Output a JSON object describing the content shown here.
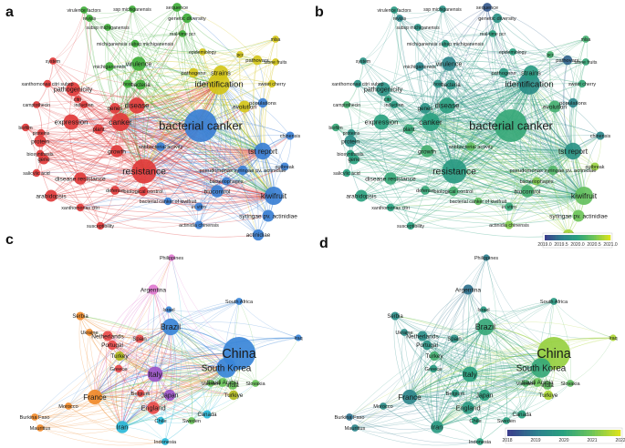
{
  "panels": [
    {
      "letter": "a",
      "colorbar": null
    },
    {
      "letter": "b",
      "colorbar": {
        "ticks": [
          "2019.0",
          "2019.5",
          "2020.0",
          "2020.5",
          "2021.0"
        ]
      }
    },
    {
      "letter": "c",
      "colorbar": null
    },
    {
      "letter": "d",
      "colorbar": {
        "ticks": [
          "2018",
          "2019",
          "2020",
          "2021",
          "2022"
        ]
      }
    }
  ],
  "keyword_nodes": [
    {
      "label": "bacterial canker",
      "cluster": 3,
      "weight": 1.0,
      "year": 0.55
    },
    {
      "label": "resistance",
      "cluster": 0,
      "weight": 0.72,
      "year": 0.45
    },
    {
      "label": "identification",
      "cluster": 2,
      "weight": 0.62,
      "year": 0.35
    },
    {
      "label": "canker",
      "cluster": 0,
      "weight": 0.5,
      "year": 0.5
    },
    {
      "label": "kiwifruit",
      "cluster": 3,
      "weight": 0.5,
      "year": 0.72
    },
    {
      "label": "tst report",
      "cluster": 3,
      "weight": 0.45,
      "year": 0.4
    },
    {
      "label": "expression",
      "cluster": 0,
      "weight": 0.4,
      "year": 0.5
    },
    {
      "label": "disease",
      "cluster": 0,
      "weight": 0.42,
      "year": 0.48
    },
    {
      "label": "strains",
      "cluster": 2,
      "weight": 0.38,
      "year": 0.45
    },
    {
      "label": "virulence",
      "cluster": 1,
      "weight": 0.36,
      "year": 0.3
    },
    {
      "label": "pathogenicity",
      "cluster": 0,
      "weight": 0.36,
      "year": 0.4
    },
    {
      "label": "biocontrol",
      "cluster": 3,
      "weight": 0.3,
      "year": 0.6
    },
    {
      "label": "growth",
      "cluster": 0,
      "weight": 0.3,
      "year": 0.6
    },
    {
      "label": "disease resistance",
      "cluster": 0,
      "weight": 0.3,
      "year": 0.55
    },
    {
      "label": "protein",
      "cluster": 0,
      "weight": 0.28,
      "year": 0.35
    },
    {
      "label": "arabidopsis",
      "cluster": 0,
      "weight": 0.28,
      "year": 0.5
    },
    {
      "label": "evolution",
      "cluster": 2,
      "weight": 0.28,
      "year": 0.6
    },
    {
      "label": "syringae pv. actinidiae",
      "cluster": 3,
      "weight": 0.28,
      "year": 0.75
    },
    {
      "label": "actinidiae",
      "cluster": 3,
      "weight": 0.26,
      "year": 0.88
    },
    {
      "label": "genes",
      "cluster": 0,
      "weight": 0.24,
      "year": 0.4
    },
    {
      "label": "plant",
      "cluster": 0,
      "weight": 0.22,
      "year": 0.55
    },
    {
      "label": "gene",
      "cluster": 0,
      "weight": 0.22,
      "year": 0.5
    },
    {
      "label": "bacteria",
      "cluster": 1,
      "weight": 0.22,
      "year": 0.4
    },
    {
      "label": "genetic diversity",
      "cluster": 1,
      "weight": 0.2,
      "year": 0.4
    },
    {
      "label": "populations",
      "cluster": 3,
      "weight": 0.2,
      "year": 0.3
    },
    {
      "label": "pathovars",
      "cluster": 2,
      "weight": 0.2,
      "year": 0.15
    },
    {
      "label": "sequence",
      "cluster": 1,
      "weight": 0.18,
      "year": 0.1
    },
    {
      "label": "michiganensis",
      "cluster": 1,
      "weight": 0.18,
      "year": 0.3
    },
    {
      "label": "pathogens",
      "cluster": 2,
      "weight": 0.2,
      "year": 0.45
    },
    {
      "label": "host",
      "cluster": 1,
      "weight": 0.16,
      "year": 0.4
    },
    {
      "label": "antibacterial activity",
      "cluster": 3,
      "weight": 0.18,
      "year": 0.7
    },
    {
      "label": "pseudomonas syringae pv. actinidiae",
      "cluster": 3,
      "weight": 0.2,
      "year": 0.65
    },
    {
      "label": "biological control",
      "cluster": 0,
      "weight": 0.2,
      "year": 0.6
    },
    {
      "label": "defense",
      "cluster": 0,
      "weight": 0.18,
      "year": 0.55
    },
    {
      "label": "outbreak",
      "cluster": 3,
      "weight": 0.16,
      "year": 0.85
    },
    {
      "label": "chinensis",
      "cluster": 3,
      "weight": 0.16,
      "year": 0.3
    },
    {
      "label": "bacteriophages",
      "cluster": 3,
      "weight": 0.16,
      "year": 0.8
    },
    {
      "label": "in vitro",
      "cluster": 3,
      "weight": 0.16,
      "year": 0.55
    },
    {
      "label": "actinidia chinensis",
      "cluster": 3,
      "weight": 0.16,
      "year": 0.8
    },
    {
      "label": "bacterial canker of kiwifruit",
      "cluster": 3,
      "weight": 0.14,
      "year": 0.7
    },
    {
      "label": "xanthomonas citri",
      "cluster": 0,
      "weight": 0.14,
      "year": 0.5
    },
    {
      "label": "susceptibility",
      "cluster": 0,
      "weight": 0.14,
      "year": 0.5
    },
    {
      "label": "salicylic acid",
      "cluster": 0,
      "weight": 0.14,
      "year": 0.5
    },
    {
      "label": "biofilm",
      "cluster": 0,
      "weight": 0.14,
      "year": 0.55
    },
    {
      "label": "proteins",
      "cluster": 0,
      "weight": 0.14,
      "year": 0.4
    },
    {
      "label": "biosynthesis",
      "cluster": 0,
      "weight": 0.14,
      "year": 0.5
    },
    {
      "label": "induction",
      "cluster": 0,
      "weight": 0.14,
      "year": 0.45
    },
    {
      "label": "camptothecin",
      "cluster": 0,
      "weight": 0.12,
      "year": 0.6
    },
    {
      "label": "xanthomonas citri subsp",
      "cluster": 0,
      "weight": 0.14,
      "year": 0.4
    },
    {
      "label": "system",
      "cluster": 0,
      "weight": 0.12,
      "year": 0.4
    },
    {
      "label": "citri",
      "cluster": 0,
      "weight": 0.12,
      "year": 0.5
    },
    {
      "label": "virulence factors",
      "cluster": 1,
      "weight": 0.12,
      "year": 0.45
    },
    {
      "label": "revisis",
      "cluster": 1,
      "weight": 0.12,
      "year": 0.3
    },
    {
      "label": "ssp michiganensis",
      "cluster": 1,
      "weight": 0.12,
      "year": 0.4
    },
    {
      "label": "subsp michiganensis",
      "cluster": 1,
      "weight": 0.12,
      "year": 0.4
    },
    {
      "label": "real-time pcr",
      "cluster": 1,
      "weight": 0.12,
      "year": 0.5
    },
    {
      "label": "michiganensis subsp michiganensis",
      "cluster": 1,
      "weight": 0.14,
      "year": 0.45
    },
    {
      "label": "epidemiology",
      "cluster": 2,
      "weight": 0.12,
      "year": 0.5
    },
    {
      "label": "stone fruits",
      "cluster": 2,
      "weight": 0.12,
      "year": 0.55
    },
    {
      "label": "mlsa",
      "cluster": 2,
      "weight": 0.12,
      "year": 0.6
    },
    {
      "label": "sweet cherry",
      "cluster": 2,
      "weight": 0.14,
      "year": 0.55
    },
    {
      "label": "pcr",
      "cluster": 2,
      "weight": 0.12,
      "year": 0.6
    }
  ],
  "country_nodes": [
    {
      "label": "China",
      "cluster": 3,
      "weight": 1.0,
      "year": 0.85
    },
    {
      "label": "South Korea",
      "cluster": 3,
      "weight": 0.55,
      "year": 0.55
    },
    {
      "label": "Brazil",
      "cluster": 3,
      "weight": 0.45,
      "year": 0.55
    },
    {
      "label": "Italy",
      "cluster": 4,
      "weight": 0.4,
      "year": 0.5
    },
    {
      "label": "France",
      "cluster": 1,
      "weight": 0.38,
      "year": 0.3
    },
    {
      "label": "Iran",
      "cluster": 5,
      "weight": 0.3,
      "year": 0.45
    },
    {
      "label": "England",
      "cluster": 0,
      "weight": 0.3,
      "year": 0.45
    },
    {
      "label": "Japan",
      "cluster": 4,
      "weight": 0.26,
      "year": 0.5
    },
    {
      "label": "Argentina",
      "cluster": 6,
      "weight": 0.22,
      "year": 0.2
    },
    {
      "label": "Netherlands",
      "cluster": 0,
      "weight": 0.22,
      "year": 0.35
    },
    {
      "label": "Portugal",
      "cluster": 0,
      "weight": 0.2,
      "year": 0.4
    },
    {
      "label": "Turkey",
      "cluster": 7,
      "weight": 0.2,
      "year": 0.6
    },
    {
      "label": "Turkiye",
      "cluster": 7,
      "weight": 0.2,
      "year": 0.9
    },
    {
      "label": "Saudi Arabia",
      "cluster": 2,
      "weight": 0.18,
      "year": 0.75
    },
    {
      "label": "India",
      "cluster": 2,
      "weight": 0.18,
      "year": 0.7
    },
    {
      "label": "Serbia",
      "cluster": 1,
      "weight": 0.16,
      "year": 0.35
    },
    {
      "label": "Spain",
      "cluster": 0,
      "weight": 0.16,
      "year": 0.4
    },
    {
      "label": "Ukraine",
      "cluster": 1,
      "weight": 0.12,
      "year": 0.35
    },
    {
      "label": "Greece",
      "cluster": 0,
      "weight": 0.14,
      "year": 0.45
    },
    {
      "label": "Belgium",
      "cluster": 0,
      "weight": 0.14,
      "year": 0.45
    },
    {
      "label": "Canada",
      "cluster": 5,
      "weight": 0.16,
      "year": 0.5
    },
    {
      "label": "Chile",
      "cluster": 5,
      "weight": 0.14,
      "year": 0.5
    },
    {
      "label": "Sweden",
      "cluster": 2,
      "weight": 0.12,
      "year": 0.5
    },
    {
      "label": "Vietnam",
      "cluster": 2,
      "weight": 0.12,
      "year": 0.65
    },
    {
      "label": "Slovakia",
      "cluster": 2,
      "weight": 0.12,
      "year": 0.7
    },
    {
      "label": "Israel",
      "cluster": 3,
      "weight": 0.1,
      "year": 0.45
    },
    {
      "label": "South Africa",
      "cluster": 3,
      "weight": 0.12,
      "year": 0.45
    },
    {
      "label": "Iraq",
      "cluster": 3,
      "weight": 0.1,
      "year": 0.9
    },
    {
      "label": "Morocco",
      "cluster": 1,
      "weight": 0.12,
      "year": 0.35
    },
    {
      "label": "Burkina Faso",
      "cluster": 1,
      "weight": 0.12,
      "year": 0.2
    },
    {
      "label": "Mauritius",
      "cluster": 1,
      "weight": 0.12,
      "year": 0.3
    },
    {
      "label": "Indonesia",
      "cluster": 5,
      "weight": 0.12,
      "year": 0.5
    },
    {
      "label": "Philippines",
      "cluster": 6,
      "weight": 0.1,
      "year": 0.25
    }
  ],
  "colors": {
    "keyword_clusters": [
      "#e03a3a",
      "#3fae3a",
      "#d4c51a",
      "#3a7fd4"
    ],
    "country_clusters": [
      "#e84a4a",
      "#f08a2a",
      "#6ac45a",
      "#3a86d8",
      "#9a55c8",
      "#2ab8d8",
      "#e07ad0",
      "#b0b820"
    ],
    "viridis": [
      "#3b3f8c",
      "#2c7f8e",
      "#2aa17f",
      "#6cc45a",
      "#d8e21c"
    ]
  }
}
